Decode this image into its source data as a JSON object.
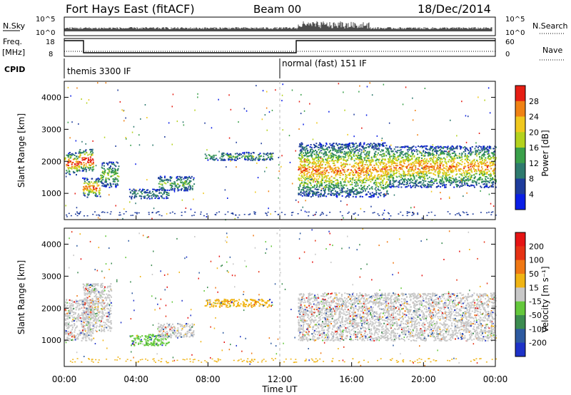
{
  "header": {
    "radar": "Fort Hays East (fitACF)",
    "beam": "Beam 00",
    "date": "18/Dec/2014"
  },
  "status_panels": {
    "nsky_label": "N.Sky",
    "nsky_ticks": [
      "10^5",
      "10^0"
    ],
    "nsearch_label": "N.Search",
    "nsearch_ticks": [
      "10^5",
      "10^0"
    ],
    "freq_label": "Freq.",
    "freq_unit": "[MHz]",
    "freq_ticks": [
      "18",
      "8"
    ],
    "nave_label": "Nave",
    "nave_ticks": [
      "60",
      "0"
    ],
    "cpid_label": "CPID",
    "cpid_segments": [
      {
        "label": "themis 3300 IF",
        "start_hour": 0,
        "end_hour": 12
      },
      {
        "label": "normal (fast) 151 IF",
        "start_hour": 12,
        "end_hour": 24
      }
    ]
  },
  "chart_data": [
    {
      "type": "heatmap",
      "name": "power",
      "ylabel": "Slant Range [km]",
      "xlabel": "",
      "x_range_hours": [
        0,
        24
      ],
      "ylim": [
        180,
        4500
      ],
      "y_ticks": [
        1000,
        2000,
        3000,
        4000
      ],
      "colorbar_label": "Power [dB]",
      "colorbar_ticks": [
        "4",
        "8",
        "12",
        "16",
        "20",
        "24",
        "28"
      ],
      "colorbar_colors": [
        "#0a1ee6",
        "#1e3c9c",
        "#2e7a6e",
        "#3aa04a",
        "#b4d21e",
        "#f0c81e",
        "#f08214",
        "#e61e14"
      ],
      "scatter_regions": [
        {
          "start_hour": 0.0,
          "end_hour": 0.8,
          "range_from": 1600,
          "range_to": 2300,
          "level": 0.6
        },
        {
          "start_hour": 0.8,
          "end_hour": 1.6,
          "range_from": 1700,
          "range_to": 2400,
          "level": 0.7
        },
        {
          "start_hour": 1.0,
          "end_hour": 2.0,
          "range_from": 900,
          "range_to": 1500,
          "level": 0.55
        },
        {
          "start_hour": 2.0,
          "end_hour": 3.0,
          "range_from": 1200,
          "range_to": 2000,
          "level": 0.3
        },
        {
          "start_hour": 3.6,
          "end_hour": 5.8,
          "range_from": 850,
          "range_to": 1150,
          "level": 0.2
        },
        {
          "start_hour": 5.2,
          "end_hour": 7.2,
          "range_from": 1100,
          "range_to": 1550,
          "level": 0.25
        },
        {
          "start_hour": 7.8,
          "end_hour": 11.6,
          "range_from": 2050,
          "range_to": 2300,
          "level": 0.25
        },
        {
          "start_hour": 13.0,
          "end_hour": 18.0,
          "range_from": 900,
          "range_to": 2600,
          "level": 0.5
        },
        {
          "start_hour": 18.0,
          "end_hour": 24.0,
          "range_from": 1200,
          "range_to": 2500,
          "level": 0.5
        }
      ]
    },
    {
      "type": "heatmap",
      "name": "velocity",
      "ylabel": "Slant Range [km]",
      "xlabel": "Time UT",
      "x_range_hours": [
        0,
        24
      ],
      "x_ticks": [
        "00:00",
        "04:00",
        "08:00",
        "12:00",
        "16:00",
        "20:00",
        "00:00"
      ],
      "ylim": [
        180,
        4500
      ],
      "y_ticks": [
        1000,
        2000,
        3000,
        4000
      ],
      "colorbar_label": "Velocity [m s⁻¹]",
      "colorbar_ticks": [
        "200",
        "100",
        "50",
        "15",
        "-15",
        "-50",
        "-100",
        "-200"
      ],
      "colorbar_colors": [
        "#1e32c8",
        "#2d5aa0",
        "#3c8c50",
        "#64c83c",
        "#c8c8c8",
        "#f0b414",
        "#f07814",
        "#e63214",
        "#e61414"
      ],
      "scatter_regions": [
        {
          "start_hour": 0.0,
          "end_hour": 1.6,
          "range_from": 1000,
          "range_to": 2300,
          "color_index": 4
        },
        {
          "start_hour": 1.0,
          "end_hour": 2.6,
          "range_from": 1300,
          "range_to": 2800,
          "color_index": 4
        },
        {
          "start_hour": 3.6,
          "end_hour": 5.8,
          "range_from": 850,
          "range_to": 1200,
          "color_index": 3
        },
        {
          "start_hour": 5.2,
          "end_hour": 7.2,
          "range_from": 1100,
          "range_to": 1550,
          "color_index": 4
        },
        {
          "start_hour": 7.8,
          "end_hour": 11.6,
          "range_from": 2050,
          "range_to": 2300,
          "color_index": 5
        },
        {
          "start_hour": 13.0,
          "end_hour": 24.0,
          "range_from": 1000,
          "range_to": 2500,
          "color_index": 4
        }
      ]
    }
  ]
}
